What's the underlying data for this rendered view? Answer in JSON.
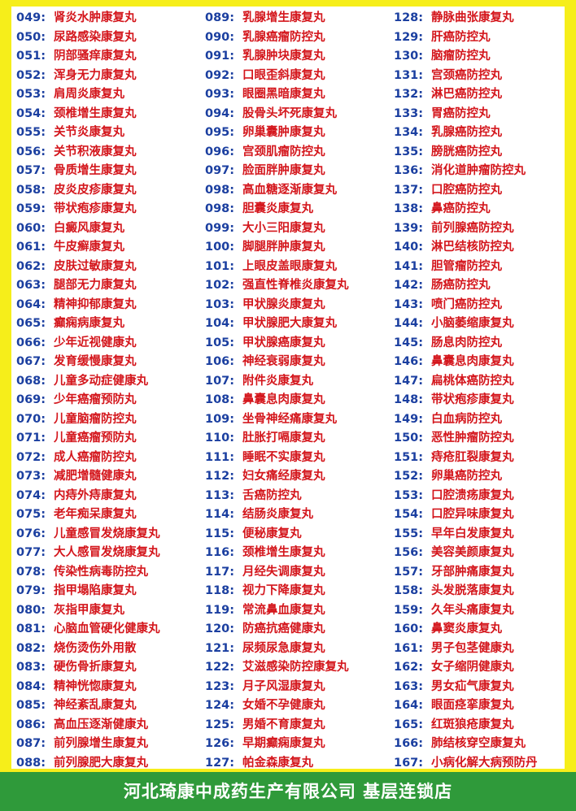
{
  "columns": [
    [
      {
        "num": "049:",
        "name": "肾炎水肿康复丸"
      },
      {
        "num": "050:",
        "name": "尿路感染康复丸"
      },
      {
        "num": "051:",
        "name": "阴部骚痒康复丸"
      },
      {
        "num": "052:",
        "name": "浑身无力康复丸"
      },
      {
        "num": "053:",
        "name": "肩周炎康复丸"
      },
      {
        "num": "054:",
        "name": "颈椎增生康复丸"
      },
      {
        "num": "055:",
        "name": "关节炎康复丸"
      },
      {
        "num": "056:",
        "name": "关节积液康复丸"
      },
      {
        "num": "057:",
        "name": "骨质增生康复丸"
      },
      {
        "num": "058:",
        "name": "皮炎皮疹康复丸"
      },
      {
        "num": "059:",
        "name": "带状疱疹康复丸"
      },
      {
        "num": "060:",
        "name": "白癜风康复丸"
      },
      {
        "num": "061:",
        "name": "牛皮癣康复丸"
      },
      {
        "num": "062:",
        "name": "皮肤过敏康复丸"
      },
      {
        "num": "063:",
        "name": "腿部无力康复丸"
      },
      {
        "num": "064:",
        "name": "精神抑郁康复丸"
      },
      {
        "num": "065:",
        "name": "癫痫病康复丸"
      },
      {
        "num": "066:",
        "name": "少年近视健康丸"
      },
      {
        "num": "067:",
        "name": "发育缓慢康复丸"
      },
      {
        "num": "068:",
        "name": "儿童多动症健康丸"
      },
      {
        "num": "069:",
        "name": "少年癌瘤预防丸"
      },
      {
        "num": "070:",
        "name": "儿童脑瘤防控丸"
      },
      {
        "num": "071:",
        "name": "儿童癌瘤预防丸"
      },
      {
        "num": "072:",
        "name": "成人癌瘤防控丸"
      },
      {
        "num": "073:",
        "name": "减肥增髓健康丸"
      },
      {
        "num": "074:",
        "name": "内痔外痔康复丸"
      },
      {
        "num": "075:",
        "name": "老年痴呆康复丸"
      },
      {
        "num": "076:",
        "name": "儿童感冒发烧康复丸"
      },
      {
        "num": "077:",
        "name": "大人感冒发烧康复丸"
      },
      {
        "num": "078:",
        "name": "传染性病毒防控丸"
      },
      {
        "num": "079:",
        "name": "指甲塌陷康复丸"
      },
      {
        "num": "080:",
        "name": "灰指甲康复丸"
      },
      {
        "num": "081:",
        "name": "心脑血管硬化健康丸"
      },
      {
        "num": "082:",
        "name": "烧伤烫伤外用散"
      },
      {
        "num": "083:",
        "name": "硬伤骨折康复丸"
      },
      {
        "num": "084:",
        "name": "精神恍惚康复丸"
      },
      {
        "num": "085:",
        "name": "神经紊乱康复丸"
      },
      {
        "num": "086:",
        "name": "高血压逐渐健康丸"
      },
      {
        "num": "087:",
        "name": "前列腺增生康复丸"
      },
      {
        "num": "088:",
        "name": "前列腺肥大康复丸"
      }
    ],
    [
      {
        "num": "089:",
        "name": "乳腺增生康复丸"
      },
      {
        "num": "090:",
        "name": "乳腺癌瘤防控丸"
      },
      {
        "num": "091:",
        "name": "乳腺肿块康复丸"
      },
      {
        "num": "092:",
        "name": "口眼歪斜康复丸"
      },
      {
        "num": "093:",
        "name": "眼圈黑暗康复丸"
      },
      {
        "num": "094:",
        "name": "股骨头坏死康复丸"
      },
      {
        "num": "095:",
        "name": "卵巢囊肿康复丸"
      },
      {
        "num": "096:",
        "name": "宫颈肌瘤防控丸"
      },
      {
        "num": "097:",
        "name": "脸面胖肿康复丸"
      },
      {
        "num": "098:",
        "name": "高血糖逐渐康复丸"
      },
      {
        "num": "098:",
        "name": "胆囊炎康复丸"
      },
      {
        "num": "099:",
        "name": "大小三阳康复丸"
      },
      {
        "num": "100:",
        "name": "脚腿胖肿康复丸"
      },
      {
        "num": "101:",
        "name": "上眼皮盖眼康复丸"
      },
      {
        "num": "102:",
        "name": "强直性脊椎炎康复丸"
      },
      {
        "num": "103:",
        "name": "甲状腺炎康复丸"
      },
      {
        "num": "104:",
        "name": "甲状腺肥大康复丸"
      },
      {
        "num": "105:",
        "name": "甲状腺癌康复丸"
      },
      {
        "num": "106:",
        "name": "神经衰弱康复丸"
      },
      {
        "num": "107:",
        "name": "附件炎康复丸"
      },
      {
        "num": "108:",
        "name": "鼻囊息肉康复丸"
      },
      {
        "num": "109:",
        "name": "坐骨神经痛康复丸"
      },
      {
        "num": "110:",
        "name": "肚胀打嗝康复丸"
      },
      {
        "num": "111:",
        "name": "睡眠不实康复丸"
      },
      {
        "num": "112:",
        "name": "妇女痛经康复丸"
      },
      {
        "num": "113:",
        "name": "舌癌防控丸"
      },
      {
        "num": "114:",
        "name": "结肠炎康复丸"
      },
      {
        "num": "115:",
        "name": "便秘康复丸"
      },
      {
        "num": "116:",
        "name": "颈椎增生康复丸"
      },
      {
        "num": "117:",
        "name": "月经失调康复丸"
      },
      {
        "num": "118:",
        "name": "视力下降康复丸"
      },
      {
        "num": "119:",
        "name": "常流鼻血康复丸"
      },
      {
        "num": "120:",
        "name": "防癌抗癌健康丸"
      },
      {
        "num": "121:",
        "name": "尿频尿急康复丸"
      },
      {
        "num": "122:",
        "name": "艾滋感染防控康复丸"
      },
      {
        "num": "123:",
        "name": "月子风湿康复丸"
      },
      {
        "num": "124:",
        "name": "女婚不孕健康丸"
      },
      {
        "num": "125:",
        "name": "男婚不育康复丸"
      },
      {
        "num": "126:",
        "name": "早期癫痫康复丸"
      },
      {
        "num": "127:",
        "name": "帕金森康复丸"
      }
    ],
    [
      {
        "num": "128:",
        "name": "静脉曲张康复丸"
      },
      {
        "num": "129:",
        "name": "肝癌防控丸"
      },
      {
        "num": "130:",
        "name": "脑瘤防控丸"
      },
      {
        "num": "131:",
        "name": "宫颈癌防控丸"
      },
      {
        "num": "132:",
        "name": "淋巴癌防控丸"
      },
      {
        "num": "133:",
        "name": "胃癌防控丸"
      },
      {
        "num": "134:",
        "name": "乳腺癌防控丸"
      },
      {
        "num": "135:",
        "name": "膀胱癌防控丸"
      },
      {
        "num": "136:",
        "name": "消化道肿瘤防控丸"
      },
      {
        "num": "137:",
        "name": "口腔癌防控丸"
      },
      {
        "num": "138:",
        "name": "鼻癌防控丸"
      },
      {
        "num": "139:",
        "name": "前列腺癌防控丸"
      },
      {
        "num": "140:",
        "name": "淋巴结核防控丸"
      },
      {
        "num": "141:",
        "name": "胆管瘤防控丸"
      },
      {
        "num": "142:",
        "name": "肠癌防控丸"
      },
      {
        "num": "143:",
        "name": "喷门癌防控丸"
      },
      {
        "num": "144:",
        "name": "小脑萎缩康复丸"
      },
      {
        "num": "145:",
        "name": "肠息肉防控丸"
      },
      {
        "num": "146:",
        "name": "鼻囊息肉康复丸"
      },
      {
        "num": "147:",
        "name": "扁桃体癌防控丸"
      },
      {
        "num": "148:",
        "name": "带状疱疹康复丸"
      },
      {
        "num": "149:",
        "name": "白血病防控丸"
      },
      {
        "num": "150:",
        "name": "恶性肿瘤防控丸"
      },
      {
        "num": "151:",
        "name": "痔疮肛裂康复丸"
      },
      {
        "num": "152:",
        "name": "卵巢癌防控丸"
      },
      {
        "num": "153:",
        "name": "口腔溃疡康复丸"
      },
      {
        "num": "154:",
        "name": "口腔异味康复丸"
      },
      {
        "num": "155:",
        "name": "早年白发康复丸"
      },
      {
        "num": "156:",
        "name": "美容美颜康复丸"
      },
      {
        "num": "157:",
        "name": "牙部肿痛康复丸"
      },
      {
        "num": "158:",
        "name": "头发脱落康复丸"
      },
      {
        "num": "159:",
        "name": "久年头痛康复丸"
      },
      {
        "num": "160:",
        "name": "鼻窦炎康复丸"
      },
      {
        "num": "161:",
        "name": "男子包茎健康丸"
      },
      {
        "num": "162:",
        "name": "女子缩阴健康丸"
      },
      {
        "num": "163:",
        "name": "男女疝气康复丸"
      },
      {
        "num": "164:",
        "name": "眼面痉挛康复丸"
      },
      {
        "num": "165:",
        "name": "红斑狼疮康复丸"
      },
      {
        "num": "166:",
        "name": "肺结核穿空康复丸"
      },
      {
        "num": "167:",
        "name": "小病化解大病预防丹"
      }
    ]
  ],
  "footer": {
    "text": "河北琦康中成药生产有限公司 基层连锁店"
  },
  "colors": {
    "number": "#1b3fa0",
    "name": "#d4161c",
    "border": "#f6ee1a",
    "footer_bg": "#2f9a3a"
  }
}
